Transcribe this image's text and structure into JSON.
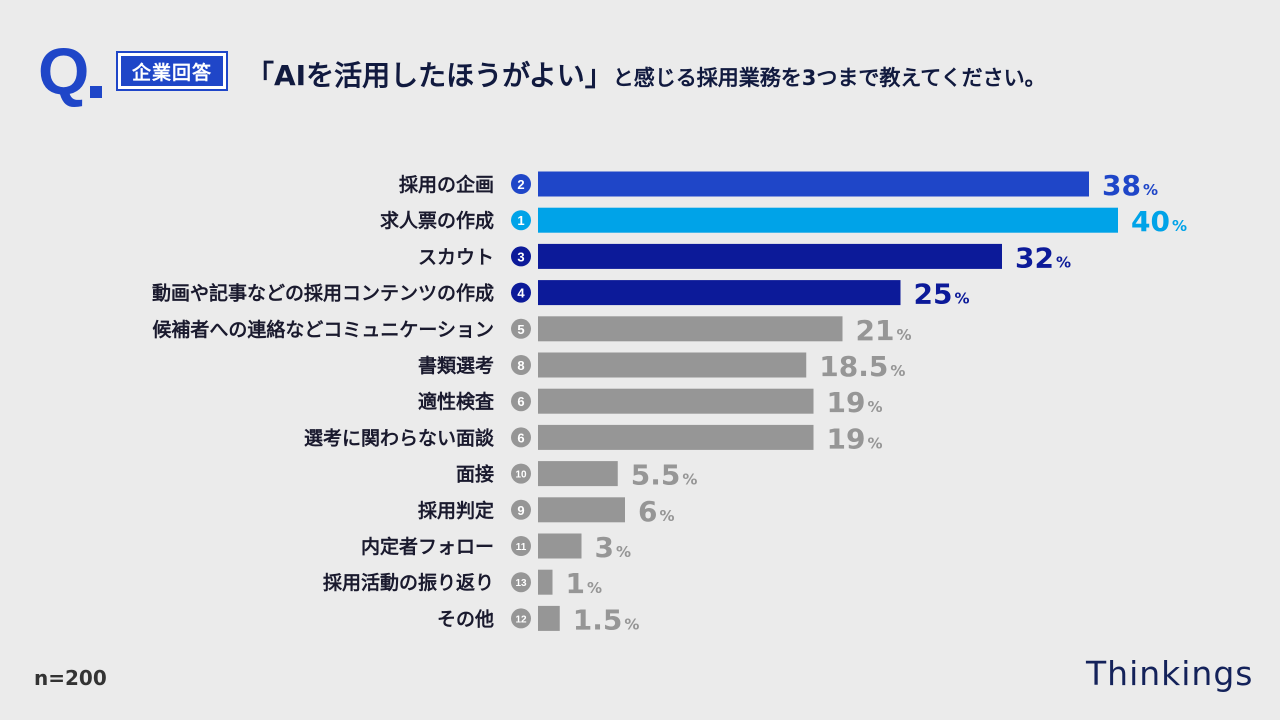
{
  "header": {
    "q_letter": "Q",
    "badge_text": "企業回答",
    "question_main": "「AIを活用したほうがよい」",
    "question_rest": "と感じる採用業務を3つまで教えてください。"
  },
  "footer": {
    "sample_size": "n=200",
    "brand": "Thinkings"
  },
  "colors": {
    "rank1": "#00a3e8",
    "rank2": "#1f46c8",
    "rank34": "#0c1a99",
    "other": "#969696"
  },
  "chart_data": {
    "type": "bar",
    "orientation": "horizontal",
    "unit": "%",
    "xlim": [
      0,
      40
    ],
    "categories": [
      "採用の企画",
      "求人票の作成",
      "スカウト",
      "動画や記事などの採用コンテンツの作成",
      "候補者への連絡などコミュニケーション",
      "書類選考",
      "適性検査",
      "選考に関わらない面談",
      "面接",
      "採用判定",
      "内定者フォロー",
      "採用活動の振り返り",
      "その他"
    ],
    "values": [
      38,
      40,
      32,
      25,
      21,
      18.5,
      19,
      19,
      5.5,
      6,
      3,
      1,
      1.5
    ],
    "labels": [
      "38",
      "40",
      "32",
      "25",
      "21",
      "18.5",
      "19",
      "19",
      "5.5",
      "6",
      "3",
      "1",
      "1.5"
    ],
    "ranks": [
      2,
      1,
      3,
      4,
      5,
      8,
      6,
      6,
      10,
      9,
      11,
      13,
      12
    ]
  }
}
